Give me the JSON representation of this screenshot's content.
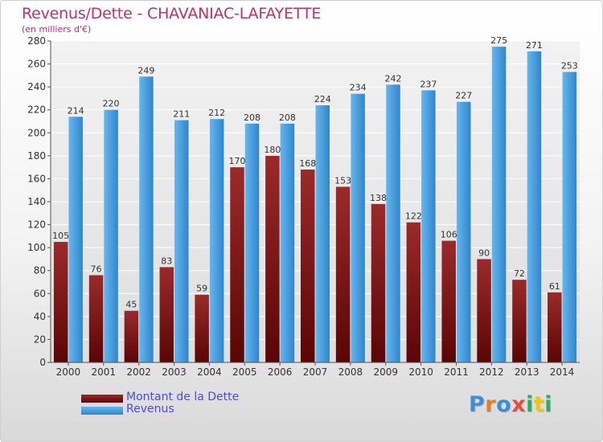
{
  "title": "Revenus/Dette - CHAVANIAC-LAFAYETTE",
  "subtitle": "(en milliers d'€)",
  "chart_data": {
    "type": "bar",
    "categories": [
      "2000",
      "2001",
      "2002",
      "2003",
      "2004",
      "2005",
      "2006",
      "2007",
      "2008",
      "2009",
      "2010",
      "2011",
      "2012",
      "2013",
      "2014"
    ],
    "series": [
      {
        "name": "Montant de la Dette",
        "values": [
          105,
          76,
          45,
          83,
          59,
          170,
          180,
          168,
          153,
          138,
          122,
          106,
          90,
          72,
          61
        ],
        "color": "#8b1a1a"
      },
      {
        "name": "Revenus",
        "values": [
          214,
          220,
          249,
          211,
          212,
          208,
          208,
          224,
          234,
          242,
          237,
          227,
          275,
          271,
          253
        ],
        "color": "#3d9be0"
      }
    ],
    "ylim": [
      0,
      280
    ],
    "yticks": [
      0,
      20,
      40,
      60,
      80,
      100,
      120,
      140,
      160,
      180,
      200,
      220,
      240,
      260,
      280
    ],
    "grid": true,
    "legend_position": "bottom-left"
  },
  "legend": {
    "items": [
      {
        "label": "Montant de la Dette"
      },
      {
        "label": "Revenus"
      }
    ]
  },
  "logo": {
    "letters": [
      "P",
      "r",
      "o",
      "x",
      "i",
      "t",
      "i"
    ],
    "colors": [
      "#3a8fd6",
      "#e67e22",
      "#3a8fd6",
      "#e74c3c",
      "#27ae60",
      "#f1c40f",
      "#27ae60"
    ]
  }
}
